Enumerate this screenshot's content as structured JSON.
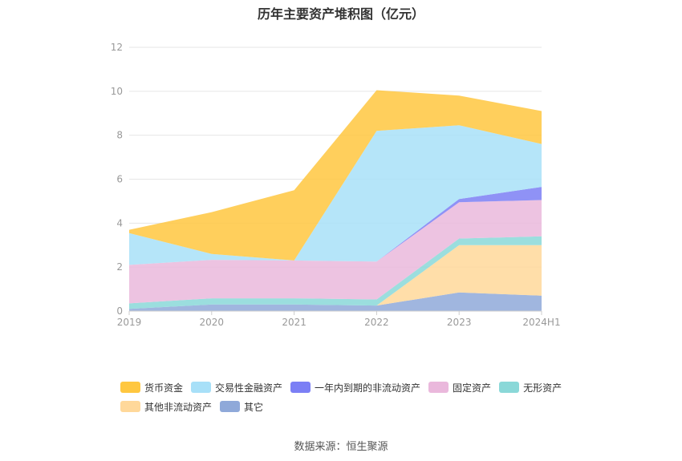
{
  "chart_data": {
    "type": "area",
    "stacked": true,
    "title": "历年主要资产堆积图（亿元）",
    "categories": [
      "2019",
      "2020",
      "2021",
      "2022",
      "2023",
      "2024H1"
    ],
    "ylim": [
      0,
      12
    ],
    "yticks": [
      0,
      2,
      4,
      6,
      8,
      10,
      12
    ],
    "grid": true,
    "legend_position": "bottom",
    "series": [
      {
        "name": "其它",
        "color": "#8fa9d9",
        "values": [
          0.1,
          0.3,
          0.3,
          0.25,
          0.85,
          0.7
        ]
      },
      {
        "name": "其他非流动资产",
        "color": "#ffd89a",
        "values": [
          0.0,
          0.0,
          0.0,
          0.0,
          2.15,
          2.3
        ]
      },
      {
        "name": "无形资产",
        "color": "#8ad8d8",
        "values": [
          0.25,
          0.28,
          0.28,
          0.28,
          0.3,
          0.4
        ]
      },
      {
        "name": "固定资产",
        "color": "#eab8dc",
        "values": [
          1.75,
          1.75,
          1.72,
          1.72,
          1.65,
          1.65
        ]
      },
      {
        "name": "一年内到期的非流动资产",
        "color": "#7b7ff5",
        "values": [
          0.0,
          0.0,
          0.0,
          0.0,
          0.15,
          0.6
        ]
      },
      {
        "name": "交易性金融资产",
        "color": "#a8e0f8",
        "values": [
          1.45,
          0.27,
          0.0,
          5.95,
          3.35,
          1.95
        ]
      },
      {
        "name": "货币资金",
        "color": "#ffc740",
        "values": [
          0.15,
          1.9,
          3.2,
          1.85,
          1.35,
          1.5
        ]
      }
    ]
  },
  "legend_order": [
    "货币资金",
    "交易性金融资产",
    "一年内到期的非流动资产",
    "固定资产",
    "无形资产",
    "其他非流动资产",
    "其它"
  ],
  "source": "数据来源：恒生聚源"
}
